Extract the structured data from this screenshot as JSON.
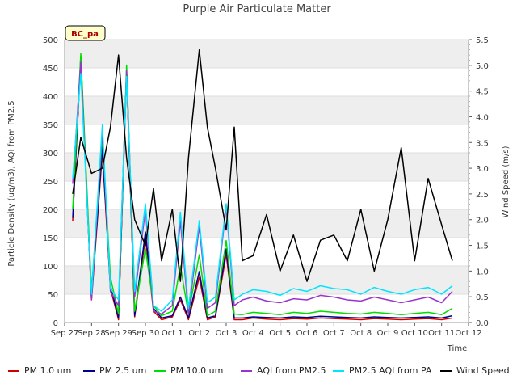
{
  "chart_data": {
    "type": "line",
    "title": "Purple Air Particulate Matter",
    "badge": "BC_pa",
    "xlabel": "Time",
    "ylabel": "Particle Density (ug/m3), AQI from PM2.5",
    "y2label": "Wind Speed (m/s)",
    "ylim": [
      0,
      500
    ],
    "y2lim": [
      0,
      5.5
    ],
    "xlim": [
      0,
      15
    ],
    "x_ticks": [
      {
        "x": 0,
        "label": "Sep 27"
      },
      {
        "x": 1,
        "label": "Sep 28"
      },
      {
        "x": 2,
        "label": "Sep 29"
      },
      {
        "x": 3,
        "label": "Sep 30"
      },
      {
        "x": 4,
        "label": "Oct 1"
      },
      {
        "x": 5,
        "label": "Oct 2"
      },
      {
        "x": 6,
        "label": "Oct 3"
      },
      {
        "x": 7,
        "label": "Oct 4"
      },
      {
        "x": 8,
        "label": "Oct 5"
      },
      {
        "x": 9,
        "label": "Oct 6"
      },
      {
        "x": 10,
        "label": "Oct 7"
      },
      {
        "x": 11,
        "label": "Oct 8"
      },
      {
        "x": 12,
        "label": "Oct 9"
      },
      {
        "x": 13,
        "label": "Oct 10"
      },
      {
        "x": 14,
        "label": "Oct 11"
      },
      {
        "x": 15,
        "label": "Oct 12"
      }
    ],
    "y_ticks": [
      0,
      50,
      100,
      150,
      200,
      250,
      300,
      350,
      400,
      450,
      500
    ],
    "y2_ticks": [
      "0.0",
      "0.5",
      "1.0",
      "1.5",
      "2.0",
      "2.5",
      "3.0",
      "3.5",
      "4.0",
      "4.5",
      "5.0",
      "5.5"
    ],
    "x": [
      0.3,
      0.6,
      1.0,
      1.4,
      1.7,
      2.0,
      2.3,
      2.6,
      3.0,
      3.3,
      3.6,
      4.0,
      4.3,
      4.6,
      5.0,
      5.3,
      5.6,
      6.0,
      6.3,
      6.6,
      7.0,
      7.5,
      8.0,
      8.5,
      9.0,
      9.5,
      10.0,
      10.5,
      11.0,
      11.5,
      12.0,
      12.5,
      13.0,
      13.5,
      14.0,
      14.4
    ],
    "series": [
      {
        "name": "PM 1.0 um",
        "color": "#cc0000",
        "axis": "left",
        "values": [
          180,
          470,
          40,
          300,
          60,
          5,
          440,
          10,
          150,
          20,
          5,
          10,
          40,
          5,
          80,
          5,
          10,
          120,
          5,
          5,
          8,
          6,
          5,
          7,
          6,
          8,
          7,
          6,
          5,
          7,
          6,
          5,
          6,
          7,
          5,
          8
        ]
      },
      {
        "name": "PM 2.5 um",
        "color": "#00008b",
        "axis": "left",
        "values": [
          185,
          465,
          45,
          310,
          65,
          8,
          445,
          12,
          160,
          25,
          8,
          12,
          45,
          8,
          90,
          8,
          12,
          130,
          8,
          8,
          10,
          9,
          8,
          10,
          9,
          11,
          10,
          9,
          8,
          10,
          9,
          8,
          9,
          10,
          8,
          12
        ]
      },
      {
        "name": "PM 10.0 um",
        "color": "#00dd00",
        "axis": "left",
        "values": [
          200,
          475,
          55,
          330,
          80,
          15,
          455,
          20,
          130,
          30,
          12,
          20,
          100,
          15,
          120,
          12,
          20,
          145,
          15,
          14,
          18,
          16,
          14,
          18,
          16,
          20,
          18,
          16,
          15,
          18,
          16,
          14,
          16,
          18,
          14,
          25
        ]
      },
      {
        "name": "AQI from PM2.5",
        "color": "#9933cc",
        "axis": "left",
        "values": [
          245,
          460,
          40,
          340,
          55,
          30,
          445,
          45,
          200,
          20,
          15,
          30,
          180,
          15,
          170,
          25,
          35,
          205,
          30,
          40,
          45,
          38,
          35,
          42,
          40,
          48,
          45,
          40,
          38,
          45,
          40,
          35,
          40,
          45,
          35,
          55
        ]
      },
      {
        "name": "PM2.5 AQI from PA",
        "color": "#00e5ff",
        "axis": "left",
        "values": [
          255,
          440,
          50,
          350,
          60,
          40,
          435,
          55,
          210,
          30,
          20,
          40,
          195,
          25,
          180,
          35,
          45,
          210,
          40,
          50,
          58,
          55,
          48,
          60,
          55,
          65,
          60,
          58,
          50,
          62,
          55,
          50,
          58,
          62,
          50,
          65
        ]
      },
      {
        "name": "Wind Speed",
        "color": "#000000",
        "axis": "right",
        "values": [
          2.5,
          3.6,
          2.9,
          3.0,
          3.8,
          5.2,
          3.2,
          2.0,
          1.5,
          2.6,
          1.2,
          2.2,
          0.8,
          3.2,
          5.3,
          3.8,
          3.0,
          1.8,
          3.8,
          1.2,
          1.3,
          2.1,
          1.0,
          1.7,
          0.8,
          1.6,
          1.7,
          1.2,
          2.2,
          1.0,
          2.0,
          3.4,
          1.2,
          2.8,
          1.9,
          1.2
        ]
      }
    ],
    "legend_position": "bottom"
  }
}
